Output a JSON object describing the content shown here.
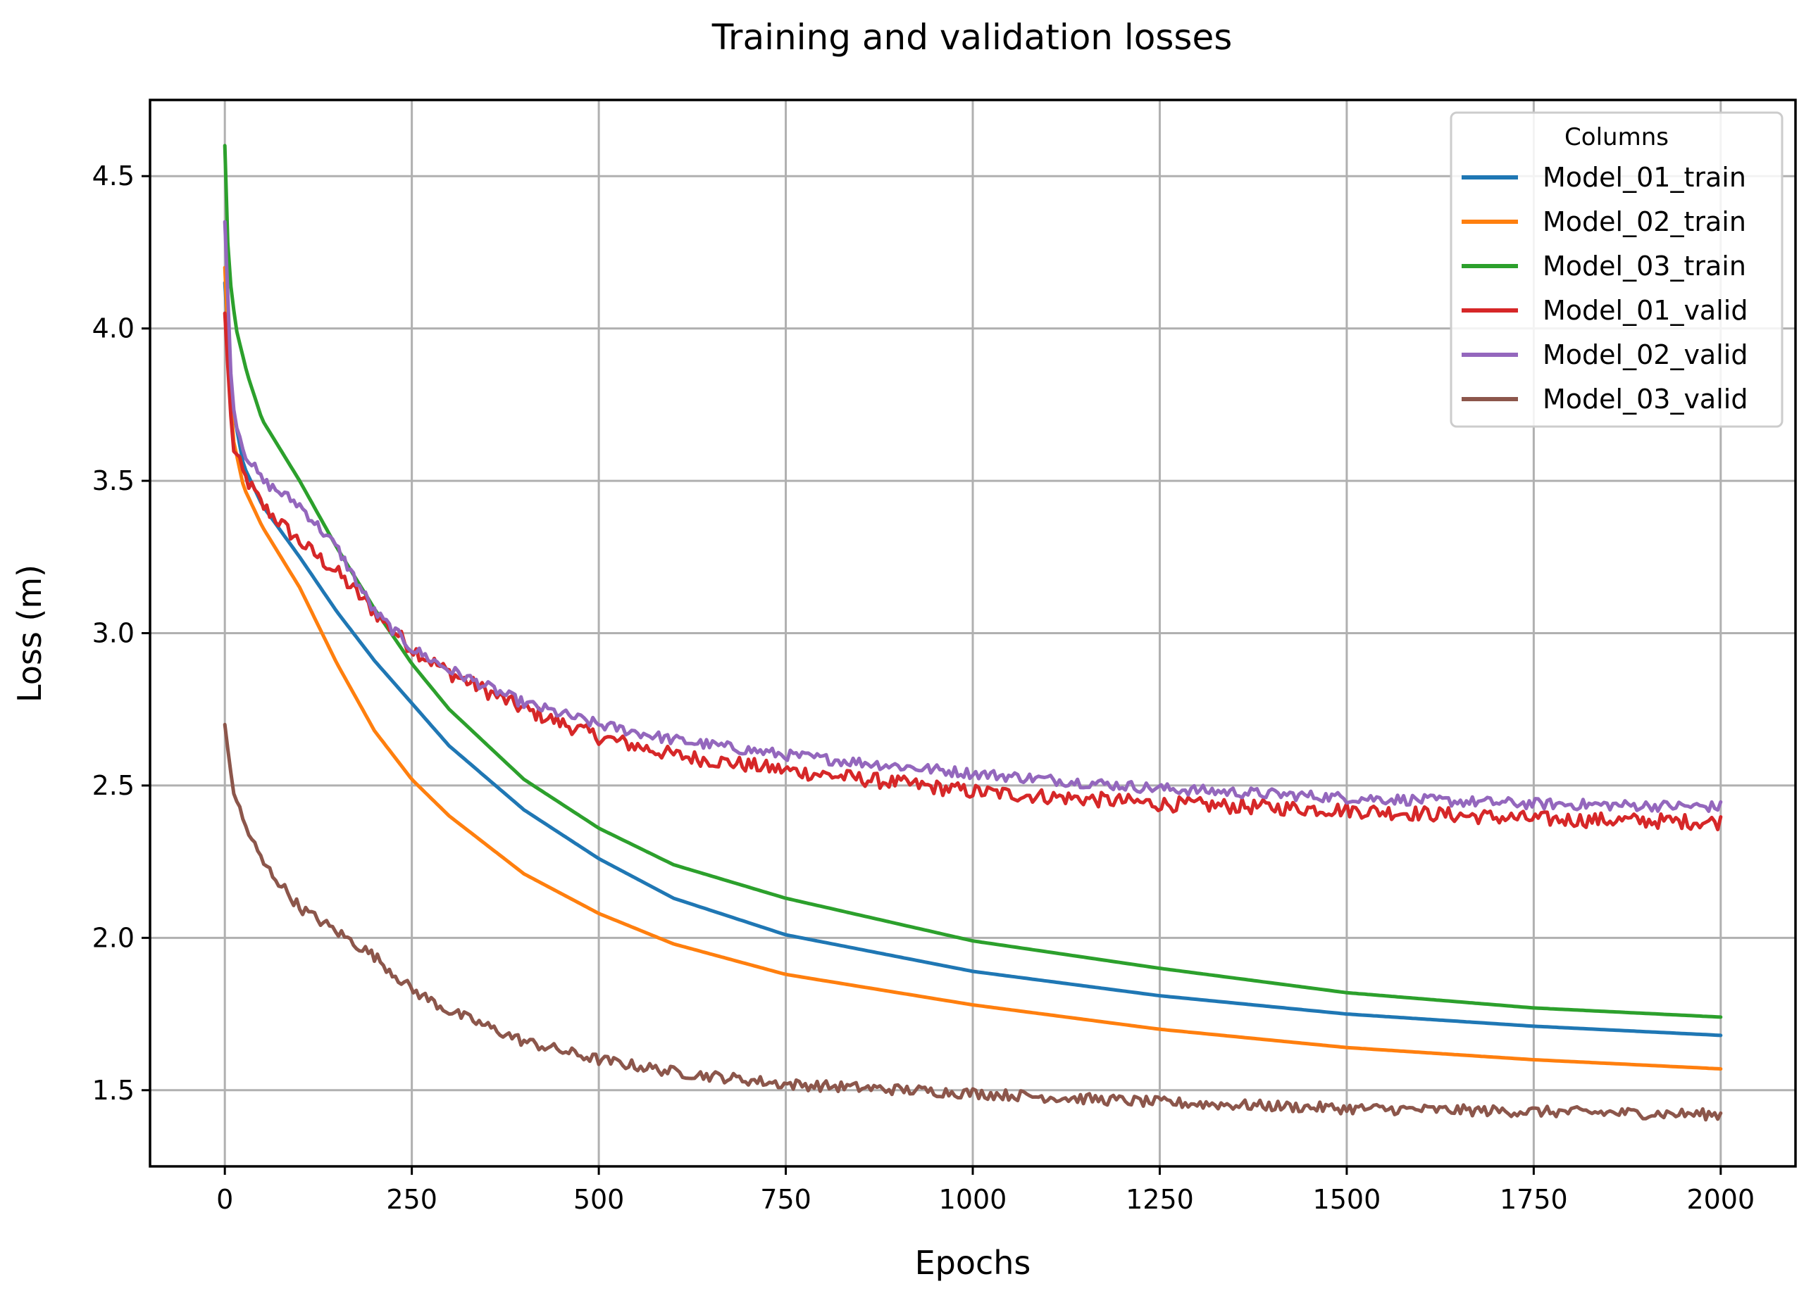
{
  "chart_data": {
    "type": "line",
    "title": "Training and validation losses",
    "xlabel": "Epochs",
    "ylabel": "Loss (m)",
    "xlim": [
      -100,
      2100
    ],
    "ylim": [
      1.25,
      4.75
    ],
    "xticks": [
      0,
      250,
      500,
      750,
      1000,
      1250,
      1500,
      1750,
      2000
    ],
    "xtick_labels": [
      "0",
      "250",
      "500",
      "750",
      "1000",
      "1250",
      "1500",
      "1750",
      "2000"
    ],
    "yticks": [
      1.5,
      2.0,
      2.5,
      3.0,
      3.5,
      4.0,
      4.5
    ],
    "ytick_labels": [
      "1.5",
      "2.0",
      "2.5",
      "3.0",
      "3.5",
      "4.0",
      "4.5"
    ],
    "grid": true,
    "legend": {
      "title": "Columns",
      "position": "top-right"
    },
    "series": [
      {
        "name": "Model_01_train",
        "color": "#1f77b4",
        "noise": 0,
        "x": [
          0,
          10,
          25,
          50,
          100,
          150,
          200,
          250,
          300,
          400,
          500,
          600,
          750,
          1000,
          1250,
          1500,
          1750,
          2000
        ],
        "y": [
          4.15,
          3.75,
          3.55,
          3.42,
          3.25,
          3.07,
          2.91,
          2.77,
          2.63,
          2.42,
          2.26,
          2.13,
          2.01,
          1.89,
          1.81,
          1.75,
          1.71,
          1.68
        ]
      },
      {
        "name": "Model_02_train",
        "color": "#ff7f0e",
        "noise": 0,
        "x": [
          0,
          10,
          25,
          50,
          100,
          150,
          200,
          250,
          300,
          400,
          500,
          600,
          750,
          1000,
          1250,
          1500,
          1750,
          2000
        ],
        "y": [
          4.2,
          3.65,
          3.48,
          3.35,
          3.15,
          2.9,
          2.68,
          2.52,
          2.4,
          2.21,
          2.08,
          1.98,
          1.88,
          1.78,
          1.7,
          1.64,
          1.6,
          1.57
        ]
      },
      {
        "name": "Model_03_train",
        "color": "#2ca02c",
        "noise": 0,
        "x": [
          0,
          5,
          15,
          30,
          50,
          100,
          150,
          200,
          250,
          300,
          400,
          500,
          600,
          750,
          1000,
          1250,
          1500,
          1750,
          2000
        ],
        "y": [
          4.6,
          4.2,
          4.0,
          3.85,
          3.7,
          3.5,
          3.28,
          3.08,
          2.9,
          2.75,
          2.52,
          2.36,
          2.24,
          2.13,
          1.99,
          1.9,
          1.82,
          1.77,
          1.74
        ]
      },
      {
        "name": "Model_01_valid",
        "color": "#d62728",
        "noise": 0.025,
        "x": [
          0,
          10,
          25,
          50,
          100,
          150,
          200,
          250,
          300,
          400,
          500,
          600,
          750,
          1000,
          1250,
          1500,
          1750,
          2000
        ],
        "y": [
          4.05,
          3.62,
          3.52,
          3.42,
          3.3,
          3.2,
          3.07,
          2.95,
          2.87,
          2.75,
          2.66,
          2.6,
          2.55,
          2.48,
          2.44,
          2.42,
          2.39,
          2.38
        ]
      },
      {
        "name": "Model_02_valid",
        "color": "#9467bd",
        "noise": 0.018,
        "x": [
          0,
          10,
          25,
          50,
          100,
          150,
          200,
          250,
          300,
          400,
          500,
          600,
          750,
          1000,
          1250,
          1500,
          1750,
          2000
        ],
        "y": [
          4.35,
          3.75,
          3.6,
          3.5,
          3.42,
          3.28,
          3.07,
          2.95,
          2.88,
          2.77,
          2.7,
          2.65,
          2.6,
          2.54,
          2.49,
          2.46,
          2.44,
          2.43
        ]
      },
      {
        "name": "Model_03_valid",
        "color": "#8c564b",
        "noise": 0.018,
        "x": [
          0,
          10,
          25,
          50,
          100,
          150,
          200,
          250,
          300,
          400,
          500,
          600,
          750,
          1000,
          1250,
          1500,
          1750,
          2000
        ],
        "y": [
          2.7,
          2.5,
          2.38,
          2.25,
          2.1,
          2.02,
          1.94,
          1.83,
          1.76,
          1.66,
          1.6,
          1.56,
          1.52,
          1.49,
          1.46,
          1.44,
          1.43,
          1.42
        ]
      }
    ]
  }
}
